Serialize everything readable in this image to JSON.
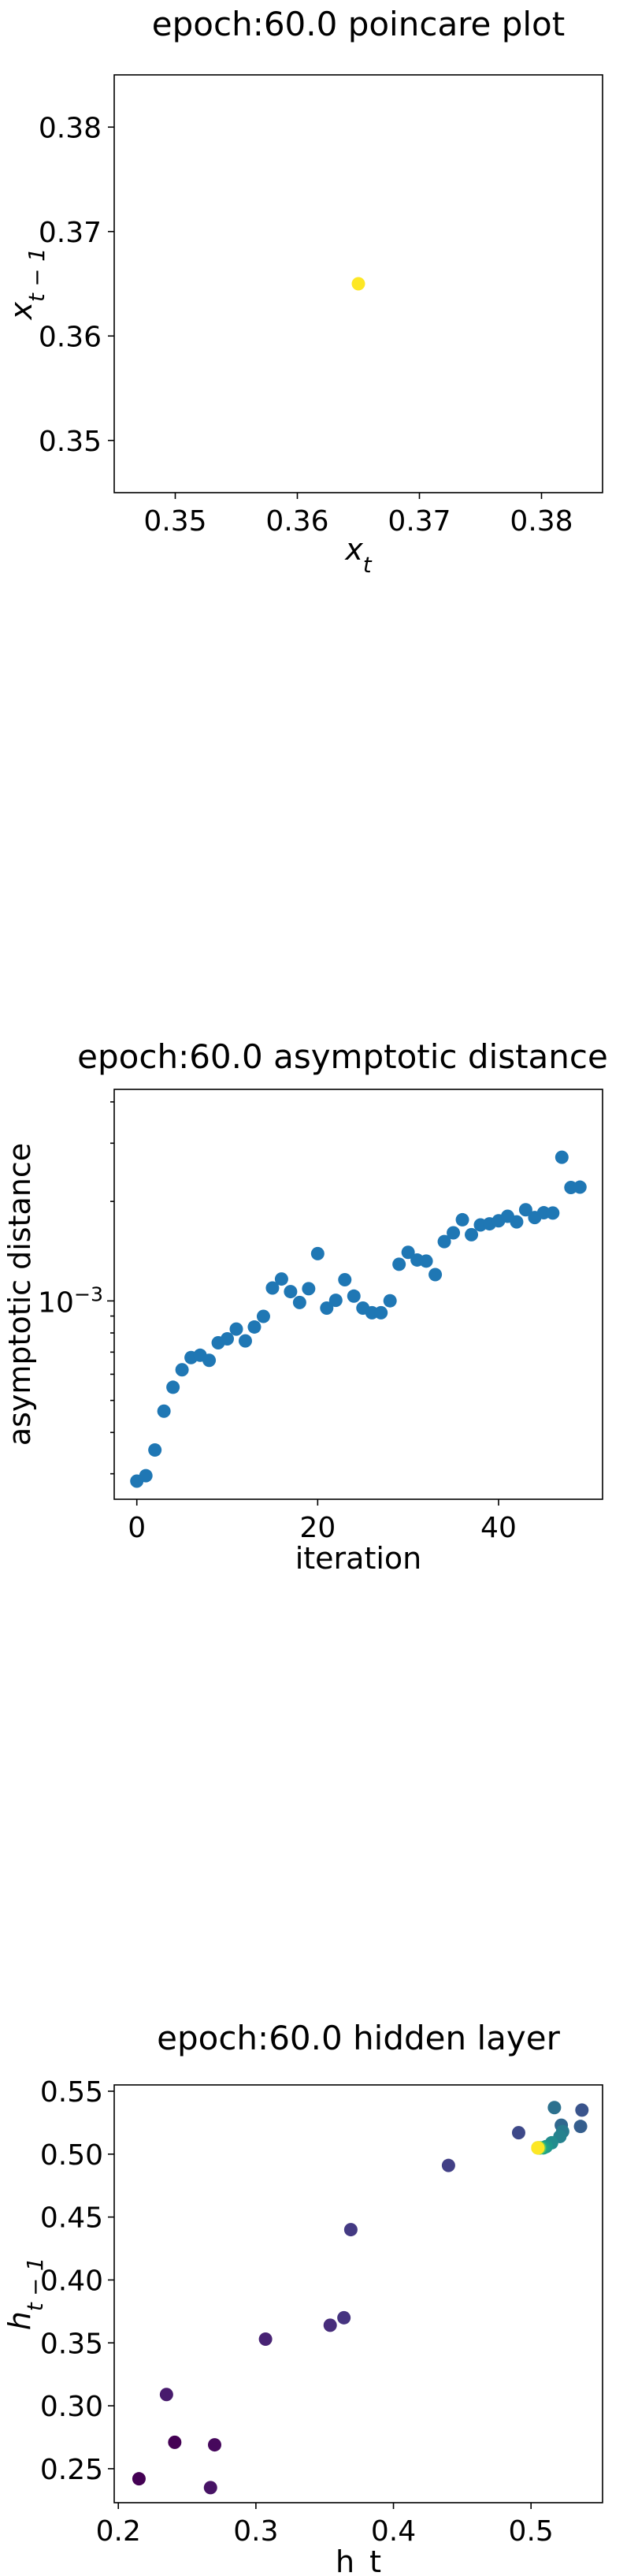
{
  "chart_data": [
    {
      "type": "scatter",
      "title": "epoch:60.0 poincare plot",
      "xlabel": "x_t",
      "ylabel": "x_{t-1}",
      "xlim": [
        0.345,
        0.385
      ],
      "ylim": [
        0.345,
        0.385
      ],
      "xticks": [
        "0.35",
        "0.36",
        "0.37",
        "0.38"
      ],
      "yticks": [
        "0.35",
        "0.36",
        "0.37",
        "0.38"
      ],
      "grid": false,
      "colormap": "viridis",
      "points": [
        {
          "x": 0.365,
          "y": 0.365,
          "color": "#fde725"
        }
      ]
    },
    {
      "type": "scatter",
      "title": "epoch:60.0 asymptotic distance",
      "xlabel": "iteration",
      "ylabel": "asymptotic distance",
      "yscale": "log",
      "xlim": [
        -2.5,
        51.5
      ],
      "ylim_log10": [
        -3.6,
        -2.36
      ],
      "xticks": [
        "0",
        "20",
        "40"
      ],
      "yticks": [
        "10^{-3}"
      ],
      "grid": false,
      "color": "#1f77b4",
      "x": [
        0,
        1,
        2,
        3,
        4,
        5,
        6,
        7,
        8,
        9,
        10,
        11,
        12,
        13,
        14,
        15,
        16,
        17,
        18,
        19,
        20,
        21,
        22,
        23,
        24,
        25,
        26,
        27,
        28,
        29,
        30,
        31,
        32,
        33,
        34,
        35,
        36,
        37,
        38,
        39,
        40,
        41,
        42,
        43,
        44,
        45,
        46,
        47,
        48,
        49
      ],
      "y": [
        0.000285,
        0.000296,
        0.000354,
        0.000464,
        0.000548,
        0.000619,
        0.000674,
        0.000685,
        0.000661,
        0.000747,
        0.000768,
        0.000822,
        0.000757,
        0.000834,
        0.000898,
        0.001094,
        0.001165,
        0.001067,
        0.000989,
        0.001089,
        0.00139,
        0.000951,
        0.001004,
        0.001159,
        0.001034,
        0.000951,
        0.000921,
        0.000921,
        0.001001,
        0.001291,
        0.001403,
        0.00133,
        0.00132,
        0.001201,
        0.001512,
        0.001607,
        0.00176,
        0.001586,
        0.001698,
        0.001711,
        0.001747,
        0.001803,
        0.001734,
        0.001887,
        0.001787,
        0.001848,
        0.001845,
        0.00272,
        0.002204,
        0.002209
      ]
    },
    {
      "type": "scatter",
      "title": "epoch:60.0 hidden layer",
      "xlabel": "h_t",
      "ylabel": "h_{t-1}",
      "xlim": [
        0.197,
        0.552
      ],
      "ylim": [
        0.223,
        0.555
      ],
      "xticks": [
        "0.2",
        "0.3",
        "0.4",
        "0.5"
      ],
      "yticks": [
        "0.25",
        "0.30",
        "0.35",
        "0.40",
        "0.45",
        "0.50",
        "0.55"
      ],
      "grid": false,
      "colormap": "viridis",
      "points": [
        {
          "x": 0.215,
          "y": 0.242,
          "color": "#440154"
        },
        {
          "x": 0.241,
          "y": 0.271,
          "color": "#440154"
        },
        {
          "x": 0.27,
          "y": 0.269,
          "color": "#46085c"
        },
        {
          "x": 0.267,
          "y": 0.235,
          "color": "#471365"
        },
        {
          "x": 0.235,
          "y": 0.309,
          "color": "#481b6d"
        },
        {
          "x": 0.307,
          "y": 0.353,
          "color": "#482374"
        },
        {
          "x": 0.354,
          "y": 0.364,
          "color": "#472d7b"
        },
        {
          "x": 0.364,
          "y": 0.37,
          "color": "#463480"
        },
        {
          "x": 0.369,
          "y": 0.44,
          "color": "#443a83"
        },
        {
          "x": 0.44,
          "y": 0.491,
          "color": "#424086"
        },
        {
          "x": 0.491,
          "y": 0.517,
          "color": "#3e4989"
        },
        {
          "x": 0.537,
          "y": 0.535,
          "color": "#3a548c"
        },
        {
          "x": 0.536,
          "y": 0.522,
          "color": "#355e8d"
        },
        {
          "x": 0.522,
          "y": 0.523,
          "color": "#31688e"
        },
        {
          "x": 0.517,
          "y": 0.537,
          "color": "#2d718e"
        },
        {
          "x": 0.523,
          "y": 0.518,
          "color": "#297b8e"
        },
        {
          "x": 0.521,
          "y": 0.514,
          "color": "#26828e"
        },
        {
          "x": 0.515,
          "y": 0.509,
          "color": "#228c8d"
        },
        {
          "x": 0.511,
          "y": 0.506,
          "color": "#1f968b"
        },
        {
          "x": 0.509,
          "y": 0.505,
          "color": "#1fa088"
        },
        {
          "x": 0.507,
          "y": 0.505,
          "color": "#28ae80"
        },
        {
          "x": 0.506,
          "y": 0.505,
          "color": "#3fbc73"
        },
        {
          "x": 0.506,
          "y": 0.505,
          "color": "#5ec962"
        },
        {
          "x": 0.505,
          "y": 0.505,
          "color": "#84d44b"
        },
        {
          "x": 0.505,
          "y": 0.505,
          "color": "#addc30"
        },
        {
          "x": 0.505,
          "y": 0.505,
          "color": "#d8e219"
        },
        {
          "x": 0.505,
          "y": 0.505,
          "color": "#fde725"
        }
      ]
    }
  ]
}
